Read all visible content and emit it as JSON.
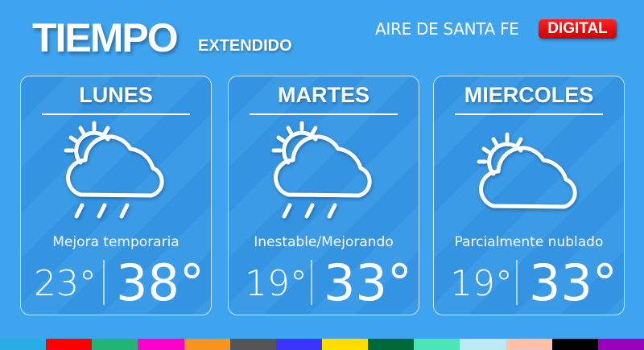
{
  "header": {
    "title": "TIEMPO",
    "subtitle": "EXTENDIDO",
    "brand": "AIRE DE SANTA FE",
    "badge": "DIGITAL"
  },
  "days": [
    {
      "name": "LUNES",
      "icon": "cloud-sun-rain-icon",
      "description": "Mejora temporaria",
      "min": "23°",
      "max": "38°"
    },
    {
      "name": "MARTES",
      "icon": "cloud-sun-rain-icon",
      "description": "Inestable/Mejorando",
      "min": "19°",
      "max": "33°"
    },
    {
      "name": "MIERCOLES",
      "icon": "cloud-sun-icon",
      "description": "Parcialmente nublado",
      "min": "19°",
      "max": "33°"
    }
  ],
  "colors": {
    "background": "#3fa4ef",
    "badge": "#e60000",
    "strip": [
      "#2aaee6",
      "#ff0000",
      "#22b573",
      "#ff00cc",
      "#f7931e",
      "#555555",
      "#3d33ff",
      "#ffdd00",
      "#006837",
      "#4ee5b5",
      "#bde8f5",
      "#ffc0a8",
      "#000000",
      "#9900bb"
    ]
  }
}
